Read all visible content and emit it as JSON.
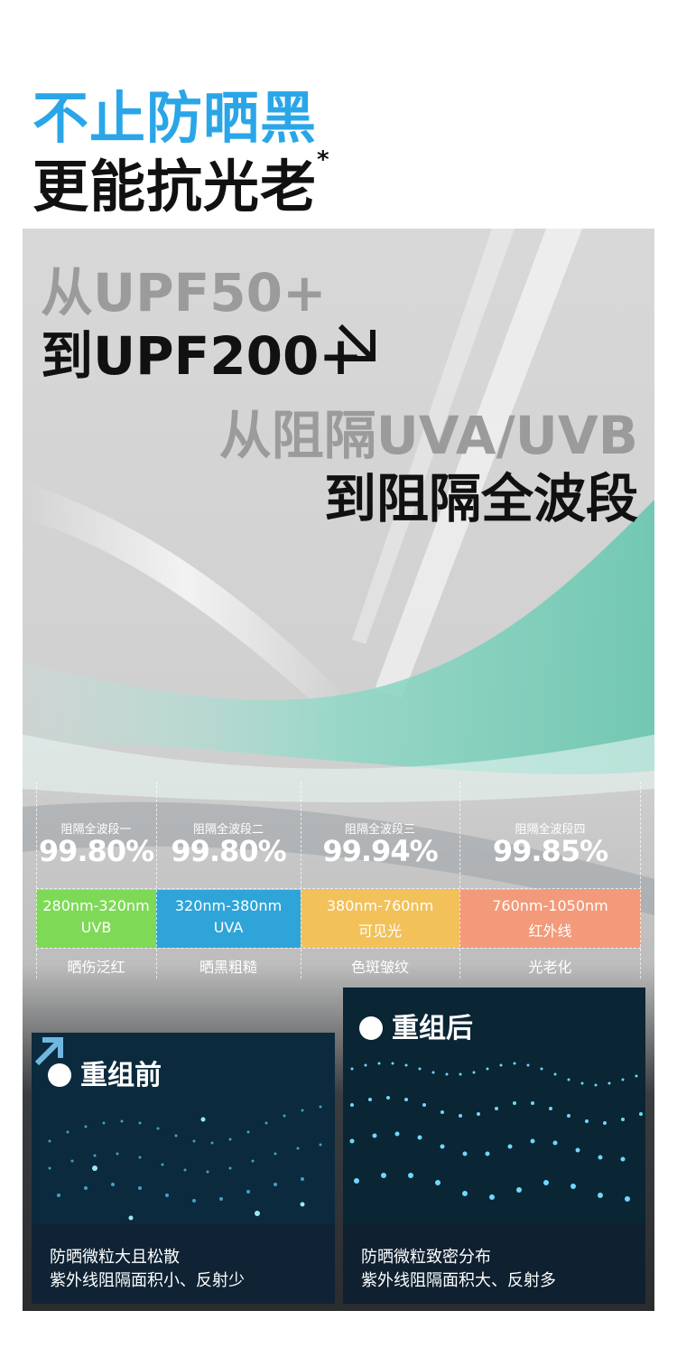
{
  "header": {
    "line1": "不止防晒黑",
    "line2": "更能抗光老",
    "line2_mark": "*"
  },
  "colors": {
    "accent_blue": "#2aa6e8",
    "uvb_green": "#7ed957",
    "uva_blue": "#2fa4d8",
    "visible_yellow": "#f2c15a",
    "infrared_orange": "#f29a7a"
  },
  "upf": {
    "from": "从UPF50+",
    "to": "到UPF200+",
    "icon": "arrow-down-right-icon"
  },
  "wave": {
    "from": "从阻隔UVA/UVB",
    "to": "到阻隔全波段"
  },
  "bands": [
    {
      "label": "阻隔全波段一",
      "percent": "99.80%",
      "range": "280nm-320nm",
      "name": "UVB",
      "effect": "晒伤泛红"
    },
    {
      "label": "阻隔全波段二",
      "percent": "99.80%",
      "range": "320nm-380nm",
      "name": "UVA",
      "effect": "晒黑粗糙"
    },
    {
      "label": "阻隔全波段三",
      "percent": "99.94%",
      "range": "380nm-760nm",
      "name": "可见光",
      "effect": "色斑皱纹"
    },
    {
      "label": "阻隔全波段四",
      "percent": "99.85%",
      "range": "760nm-1050nm",
      "name": "红外线",
      "effect": "光老化"
    }
  ],
  "before": {
    "title": "重组前",
    "caption_1": "防晒微粒大且松散",
    "caption_2": "紫外线阻隔面积小、反射少",
    "icon": "arrow-up-right-icon"
  },
  "after": {
    "title": "重组后",
    "caption_1": "防晒微粒致密分布",
    "caption_2": "紫外线阻隔面积大、反射多"
  }
}
